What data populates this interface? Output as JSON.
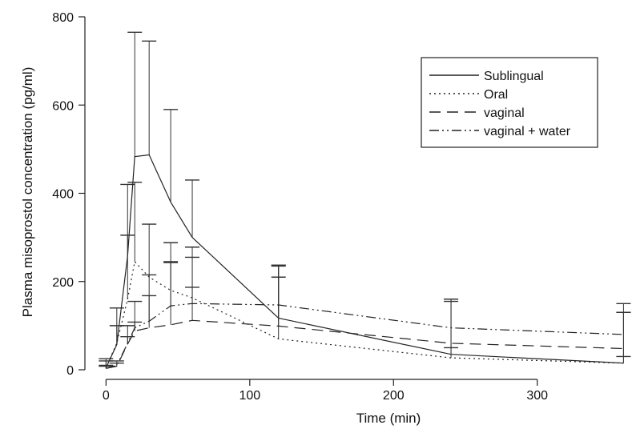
{
  "chart_data": {
    "type": "line",
    "xlabel": "Time (min)",
    "ylabel": "Plasma misoprostol concentration (pg/ml)",
    "xlim": [
      -8,
      362
    ],
    "ylim": [
      0,
      800
    ],
    "xticks": [
      0,
      100,
      200,
      300
    ],
    "yticks": [
      0,
      200,
      400,
      600,
      800
    ],
    "grid": false,
    "legend_position": "top-right",
    "x": [
      0,
      7.5,
      15,
      20,
      30,
      45,
      60,
      120,
      240,
      360
    ],
    "series": [
      {
        "name": "Sublingual",
        "dash": "solid",
        "values": [
          5,
          57,
          258,
          483,
          487,
          380,
          300,
          117,
          35,
          15
        ],
        "upper": [
          25,
          140,
          420,
          765,
          745,
          590,
          430,
          237,
          160,
          150
        ]
      },
      {
        "name": "Oral",
        "dash": "dotted",
        "values": [
          5,
          60,
          160,
          245,
          210,
          180,
          163,
          70,
          27,
          15
        ],
        "upper": [
          20,
          100,
          305,
          425,
          330,
          288,
          278,
          210,
          155,
          130
        ]
      },
      {
        "name": "vaginal",
        "dash": "dashed",
        "values": [
          3,
          8,
          58,
          88,
          95,
          102,
          112,
          99,
          60,
          48
        ],
        "upper": [
          8,
          15,
          75,
          108,
          168,
          243,
          255,
          235,
          50,
          30
        ]
      },
      {
        "name": "vaginal + water",
        "dash": "dashdotdot",
        "values": [
          3,
          10,
          60,
          95,
          110,
          145,
          150,
          147,
          95,
          80
        ],
        "upper": [
          10,
          20,
          100,
          155,
          215,
          245,
          187,
          237,
          160,
          130
        ]
      }
    ]
  }
}
